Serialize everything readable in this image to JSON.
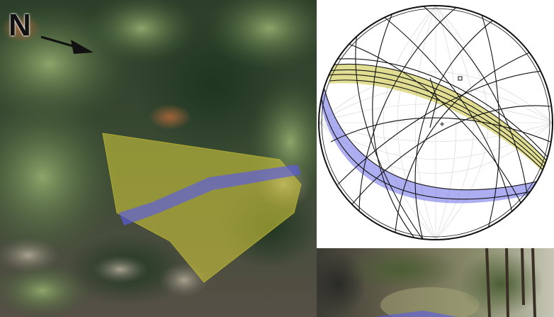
{
  "north_label": "N",
  "colors": {
    "bedding_plane": "#c8c23c",
    "joint_set": "#5a5ae6",
    "great_circles": "#111111",
    "net_grid": "#c8c8c8",
    "vegetation_dark": "#1f3a24",
    "vegetation_light": "#6f8c52",
    "rock": "#8f8a7a"
  },
  "icons": {
    "north_arrow": "arrow-icon"
  }
}
